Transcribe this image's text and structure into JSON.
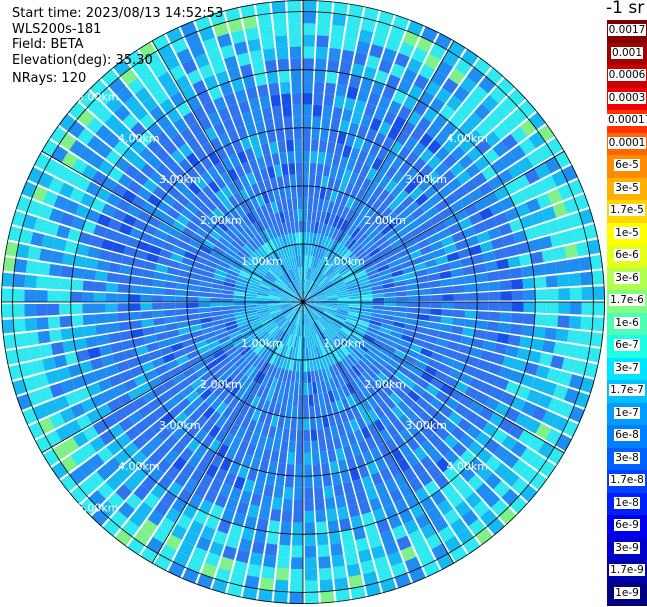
{
  "header": {
    "start_time": "Start time: 2023/08/13 14:52:53",
    "instrument": "WLS200s-181",
    "field": "Field: BETA",
    "elevation": "Elevation(deg): 35.30",
    "nrays": "NRays: 120"
  },
  "colorbar": {
    "title": "-1 sr",
    "labels": [
      "0.0017",
      "0.001",
      "0.0006",
      "0.0003",
      "0.00017",
      "0.0001",
      "6e-5",
      "3e-5",
      "1.7e-5",
      "1e-5",
      "6e-6",
      "3e-6",
      "1.7e-6",
      "1e-6",
      "6e-7",
      "3e-7",
      "1.7e-7",
      "1e-7",
      "6e-8",
      "3e-8",
      "1.7e-8",
      "1e-8",
      "6e-9",
      "3e-9",
      "1.7e-9",
      "1e-9"
    ],
    "colors": [
      "#7f0000",
      "#a50000",
      "#cc0000",
      "#ee0000",
      "#ff3300",
      "#ff6600",
      "#ff8c00",
      "#ffb000",
      "#ffd500",
      "#ffff00",
      "#e6ff1a",
      "#b3ff4d",
      "#80ff80",
      "#4dffb3",
      "#1affe6",
      "#00e5ff",
      "#00c0ff",
      "#009cff",
      "#0080ff",
      "#0060ff",
      "#0040ff",
      "#0020ff",
      "#0000ee",
      "#0000cc",
      "#0000a8",
      "#000080"
    ]
  },
  "range_rings": [
    "1.00km",
    "2.00km",
    "3.00km",
    "4.00km",
    "5.00km"
  ],
  "plot": {
    "nrays": 120,
    "nrings": 26,
    "max_range_km": 5.2,
    "colors": {
      "ring_line": "#000000",
      "cyan": "#2fe8f0",
      "light_blue": "#16b8f2",
      "mid_blue": "#1e8cf0",
      "blue": "#2f74ef",
      "deep_blue": "#1650e8",
      "green": "#7ff08a"
    }
  }
}
